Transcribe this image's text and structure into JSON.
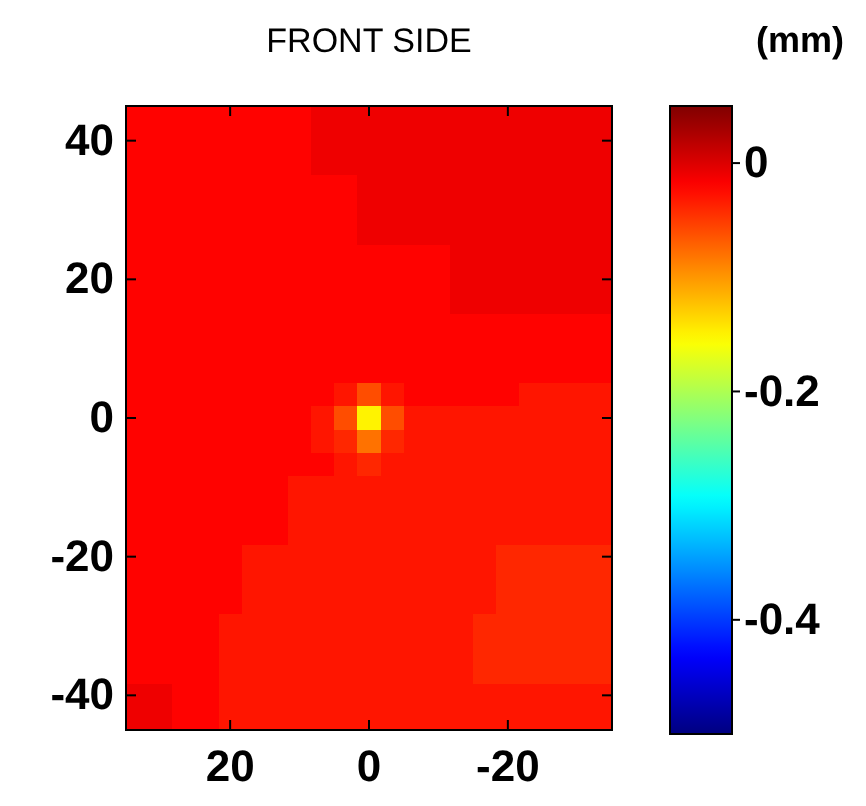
{
  "chart_data": {
    "type": "heatmap",
    "title": "FRONT SIDE",
    "clabel": "(mm)",
    "categories": [
      null,
      null,
      null,
      null,
      "20",
      null,
      null,
      null,
      null,
      null,
      "0",
      null,
      null,
      null,
      null,
      null,
      "-20",
      null,
      null,
      null,
      null
    ],
    "y_categories": [
      null,
      "40",
      null,
      null,
      null,
      null,
      null,
      "20",
      null,
      null,
      null,
      null,
      null,
      "0",
      null,
      null,
      null,
      null,
      null,
      "-20",
      null,
      null,
      null,
      null,
      null,
      "-40",
      null
    ],
    "clim": [
      -0.5,
      0.05
    ],
    "cticks": [
      -0.4,
      -0.2,
      0
    ],
    "cells": [
      [
        -0.02,
        -0.02,
        -0.02,
        -0.02,
        -0.02,
        -0.02,
        -0.02,
        -0.02,
        -0.01,
        -0.01,
        -0.01,
        -0.01,
        -0.01,
        -0.01,
        -0.01,
        -0.01,
        -0.01,
        -0.01,
        -0.01,
        -0.01,
        -0.01
      ],
      [
        -0.02,
        -0.02,
        -0.02,
        -0.02,
        -0.02,
        -0.02,
        -0.02,
        -0.02,
        -0.01,
        -0.01,
        -0.01,
        -0.01,
        -0.01,
        -0.01,
        -0.01,
        -0.01,
        -0.01,
        -0.01,
        -0.01,
        -0.01,
        -0.01
      ],
      [
        -0.02,
        -0.02,
        -0.02,
        -0.02,
        -0.02,
        -0.02,
        -0.02,
        -0.02,
        -0.01,
        -0.01,
        -0.01,
        -0.01,
        -0.01,
        -0.01,
        -0.01,
        -0.01,
        -0.01,
        -0.01,
        -0.01,
        -0.01,
        -0.01
      ],
      [
        -0.02,
        -0.02,
        -0.02,
        -0.02,
        -0.02,
        -0.02,
        -0.02,
        -0.02,
        -0.02,
        -0.02,
        -0.01,
        -0.01,
        -0.01,
        -0.01,
        -0.01,
        -0.01,
        -0.01,
        -0.01,
        -0.01,
        -0.01,
        -0.01
      ],
      [
        -0.02,
        -0.02,
        -0.02,
        -0.02,
        -0.02,
        -0.02,
        -0.02,
        -0.02,
        -0.02,
        -0.02,
        -0.01,
        -0.01,
        -0.01,
        -0.01,
        -0.01,
        -0.01,
        -0.01,
        -0.01,
        -0.01,
        -0.01,
        -0.01
      ],
      [
        -0.02,
        -0.02,
        -0.02,
        -0.02,
        -0.02,
        -0.02,
        -0.02,
        -0.02,
        -0.02,
        -0.02,
        -0.01,
        -0.01,
        -0.01,
        -0.01,
        -0.01,
        -0.01,
        -0.01,
        -0.01,
        -0.01,
        -0.01,
        -0.01
      ],
      [
        -0.02,
        -0.02,
        -0.02,
        -0.02,
        -0.02,
        -0.02,
        -0.02,
        -0.02,
        -0.02,
        -0.02,
        -0.02,
        -0.02,
        -0.02,
        -0.02,
        -0.01,
        -0.01,
        -0.01,
        -0.01,
        -0.01,
        -0.01,
        -0.01
      ],
      [
        -0.02,
        -0.02,
        -0.02,
        -0.02,
        -0.02,
        -0.02,
        -0.02,
        -0.02,
        -0.02,
        -0.02,
        -0.02,
        -0.02,
        -0.02,
        -0.02,
        -0.01,
        -0.01,
        -0.01,
        -0.01,
        -0.01,
        -0.01,
        -0.01
      ],
      [
        -0.02,
        -0.02,
        -0.02,
        -0.02,
        -0.02,
        -0.02,
        -0.02,
        -0.02,
        -0.02,
        -0.02,
        -0.02,
        -0.02,
        -0.02,
        -0.02,
        -0.01,
        -0.01,
        -0.01,
        -0.01,
        -0.01,
        -0.01,
        -0.01
      ],
      [
        -0.02,
        -0.02,
        -0.02,
        -0.02,
        -0.02,
        -0.02,
        -0.02,
        -0.02,
        -0.02,
        -0.02,
        -0.02,
        -0.02,
        -0.02,
        -0.02,
        -0.02,
        -0.02,
        -0.02,
        -0.02,
        -0.02,
        -0.02,
        -0.02
      ],
      [
        -0.02,
        -0.02,
        -0.02,
        -0.02,
        -0.02,
        -0.02,
        -0.02,
        -0.02,
        -0.02,
        -0.02,
        -0.02,
        -0.02,
        -0.02,
        -0.02,
        -0.02,
        -0.02,
        -0.02,
        -0.02,
        -0.02,
        -0.02,
        -0.02
      ],
      [
        -0.02,
        -0.02,
        -0.02,
        -0.02,
        -0.02,
        -0.02,
        -0.02,
        -0.02,
        -0.02,
        -0.02,
        -0.02,
        -0.02,
        -0.02,
        -0.02,
        -0.02,
        -0.02,
        -0.02,
        -0.02,
        -0.02,
        -0.02,
        -0.02
      ],
      [
        -0.02,
        -0.02,
        -0.02,
        -0.02,
        -0.02,
        -0.02,
        -0.02,
        -0.02,
        -0.02,
        -0.03,
        -0.06,
        -0.03,
        -0.02,
        -0.02,
        -0.02,
        -0.02,
        -0.02,
        -0.03,
        -0.03,
        -0.03,
        -0.03
      ],
      [
        -0.02,
        -0.02,
        -0.02,
        -0.02,
        -0.02,
        -0.02,
        -0.02,
        -0.02,
        -0.03,
        -0.06,
        -0.15,
        -0.06,
        -0.03,
        -0.03,
        -0.03,
        -0.03,
        -0.03,
        -0.03,
        -0.03,
        -0.03,
        -0.03
      ],
      [
        -0.02,
        -0.02,
        -0.02,
        -0.02,
        -0.02,
        -0.02,
        -0.02,
        -0.02,
        -0.03,
        -0.04,
        -0.08,
        -0.04,
        -0.03,
        -0.03,
        -0.03,
        -0.03,
        -0.03,
        -0.03,
        -0.03,
        -0.03,
        -0.03
      ],
      [
        -0.02,
        -0.02,
        -0.02,
        -0.02,
        -0.02,
        -0.02,
        -0.02,
        -0.02,
        -0.02,
        -0.03,
        -0.04,
        -0.03,
        -0.03,
        -0.03,
        -0.03,
        -0.03,
        -0.03,
        -0.03,
        -0.03,
        -0.03,
        -0.03
      ],
      [
        -0.02,
        -0.02,
        -0.02,
        -0.02,
        -0.02,
        -0.02,
        -0.02,
        -0.03,
        -0.03,
        -0.03,
        -0.03,
        -0.03,
        -0.03,
        -0.03,
        -0.03,
        -0.03,
        -0.03,
        -0.03,
        -0.03,
        -0.03,
        -0.03
      ],
      [
        -0.02,
        -0.02,
        -0.02,
        -0.02,
        -0.02,
        -0.02,
        -0.02,
        -0.03,
        -0.03,
        -0.03,
        -0.03,
        -0.03,
        -0.03,
        -0.03,
        -0.03,
        -0.03,
        -0.03,
        -0.03,
        -0.03,
        -0.03,
        -0.03
      ],
      [
        -0.02,
        -0.02,
        -0.02,
        -0.02,
        -0.02,
        -0.02,
        -0.02,
        -0.03,
        -0.03,
        -0.03,
        -0.03,
        -0.03,
        -0.03,
        -0.03,
        -0.03,
        -0.03,
        -0.03,
        -0.03,
        -0.03,
        -0.03,
        -0.03
      ],
      [
        -0.02,
        -0.02,
        -0.02,
        -0.02,
        -0.02,
        -0.03,
        -0.03,
        -0.03,
        -0.03,
        -0.03,
        -0.03,
        -0.03,
        -0.03,
        -0.03,
        -0.03,
        -0.03,
        -0.04,
        -0.04,
        -0.04,
        -0.04,
        -0.04
      ],
      [
        -0.02,
        -0.02,
        -0.02,
        -0.02,
        -0.02,
        -0.03,
        -0.03,
        -0.03,
        -0.03,
        -0.03,
        -0.03,
        -0.03,
        -0.03,
        -0.03,
        -0.03,
        -0.03,
        -0.04,
        -0.04,
        -0.04,
        -0.04,
        -0.04
      ],
      [
        -0.02,
        -0.02,
        -0.02,
        -0.02,
        -0.02,
        -0.03,
        -0.03,
        -0.03,
        -0.03,
        -0.03,
        -0.03,
        -0.03,
        -0.03,
        -0.03,
        -0.03,
        -0.03,
        -0.04,
        -0.04,
        -0.04,
        -0.04,
        -0.04
      ],
      [
        -0.02,
        -0.02,
        -0.02,
        -0.02,
        -0.03,
        -0.03,
        -0.03,
        -0.03,
        -0.03,
        -0.03,
        -0.03,
        -0.03,
        -0.03,
        -0.03,
        -0.03,
        -0.04,
        -0.04,
        -0.04,
        -0.04,
        -0.04,
        -0.04
      ],
      [
        -0.02,
        -0.02,
        -0.02,
        -0.02,
        -0.03,
        -0.03,
        -0.03,
        -0.03,
        -0.03,
        -0.03,
        -0.03,
        -0.03,
        -0.03,
        -0.03,
        -0.03,
        -0.04,
        -0.04,
        -0.04,
        -0.04,
        -0.04,
        -0.04
      ],
      [
        -0.02,
        -0.02,
        -0.02,
        -0.02,
        -0.03,
        -0.03,
        -0.03,
        -0.03,
        -0.03,
        -0.03,
        -0.03,
        -0.03,
        -0.03,
        -0.03,
        -0.03,
        -0.04,
        -0.04,
        -0.04,
        -0.04,
        -0.04,
        -0.04
      ],
      [
        -0.01,
        -0.01,
        -0.02,
        -0.02,
        -0.03,
        -0.03,
        -0.03,
        -0.03,
        -0.03,
        -0.03,
        -0.03,
        -0.03,
        -0.03,
        -0.03,
        -0.03,
        -0.03,
        -0.03,
        -0.03,
        -0.03,
        -0.03,
        -0.03
      ],
      [
        -0.01,
        -0.01,
        -0.02,
        -0.02,
        -0.03,
        -0.03,
        -0.03,
        -0.03,
        -0.03,
        -0.03,
        -0.03,
        -0.03,
        -0.03,
        -0.03,
        -0.03,
        -0.03,
        -0.03,
        -0.03,
        -0.03,
        -0.03,
        -0.03
      ]
    ]
  }
}
